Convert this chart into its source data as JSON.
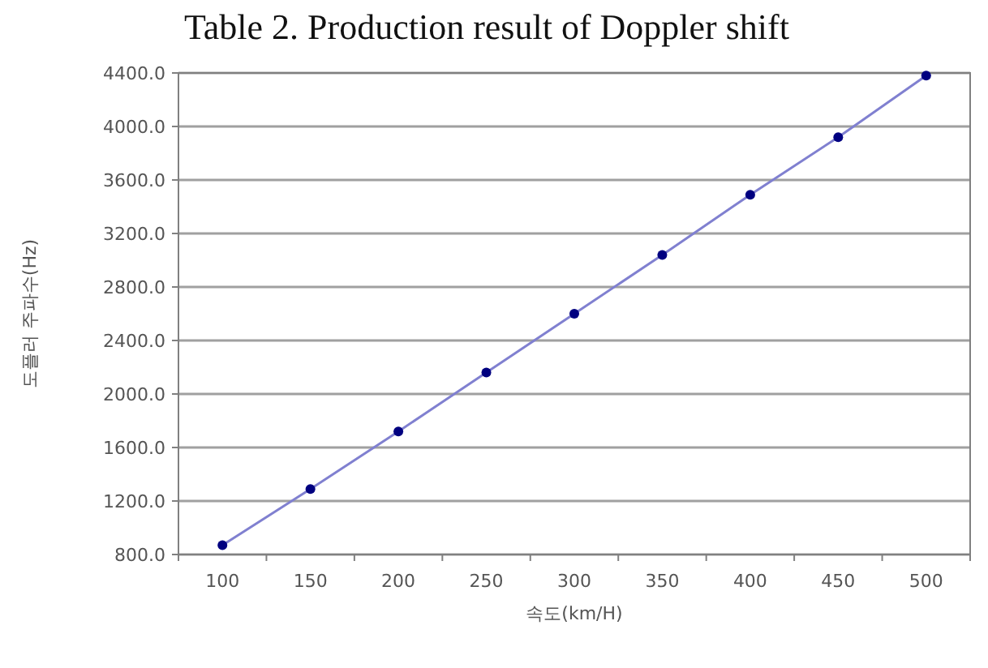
{
  "chart_data": {
    "type": "line",
    "title": "Table 2. Production result of Doppler shift",
    "xlabel": "속도(km/H)",
    "ylabel": "도플러 주파수(Hz)",
    "categories": [
      "100",
      "150",
      "200",
      "250",
      "300",
      "350",
      "400",
      "450",
      "500"
    ],
    "series": [
      {
        "color": "#8080d0",
        "values": [
          870,
          1290,
          1720,
          2160,
          2600,
          3040,
          3490,
          3920,
          4380
        ]
      }
    ],
    "marker": "circle",
    "line_style": "solid",
    "grid": "y",
    "ylim": [
      800,
      4400
    ],
    "yticks": [
      {
        "value": 800,
        "label": "800.0"
      },
      {
        "value": 1200,
        "label": "1200.0"
      },
      {
        "value": 1600,
        "label": "1600.0"
      },
      {
        "value": 2000,
        "label": "2000.0"
      },
      {
        "value": 2400,
        "label": "2400.0"
      },
      {
        "value": 2800,
        "label": "2800.0"
      },
      {
        "value": 3200,
        "label": "3200.0"
      },
      {
        "value": 3600,
        "label": "3600.0"
      },
      {
        "value": 4000,
        "label": "4000.0"
      },
      {
        "value": 4400,
        "label": "4400.0"
      }
    ]
  }
}
